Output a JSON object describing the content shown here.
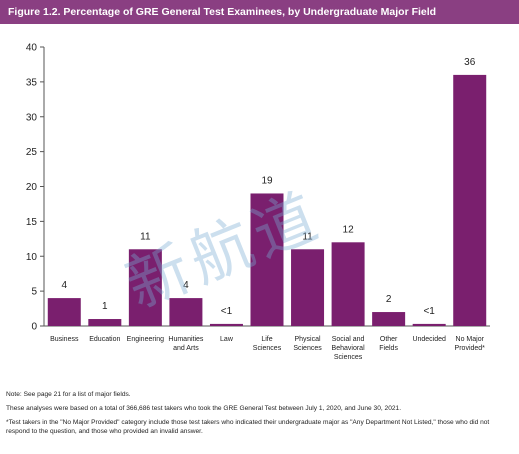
{
  "figure_title": "Figure 1.2. Percentage of GRE General Test Examinees, by Undergraduate Major Field",
  "watermark_text": "新航道",
  "chart_data": {
    "type": "bar",
    "categories": [
      [
        "Business"
      ],
      [
        "Education"
      ],
      [
        "Engineering"
      ],
      [
        "Humanities",
        "and Arts"
      ],
      [
        "Law"
      ],
      [
        "Life",
        "Sciences"
      ],
      [
        "Physical",
        "Sciences"
      ],
      [
        "Social and",
        "Behavioral",
        "Sciences"
      ],
      [
        "Other",
        "Fields"
      ],
      [
        "Undecided"
      ],
      [
        "No Major",
        "Provided*"
      ]
    ],
    "values": [
      4,
      1,
      11,
      4,
      0.3,
      19,
      11,
      12,
      2,
      0.3,
      36
    ],
    "data_labels": [
      "4",
      "1",
      "11",
      "4",
      "<1",
      "19",
      "11",
      "12",
      "2",
      "<1",
      "36"
    ],
    "ylim": [
      0,
      40
    ],
    "yticks": [
      0,
      5,
      10,
      15,
      20,
      25,
      30,
      35,
      40
    ],
    "bar_color": "#7a1f6e",
    "grid": false
  },
  "notes": [
    "Note: See page 21 for a list of major fields.",
    "These analyses were based on a total of 366,686 test takers who took the GRE General Test between July 1, 2020, and June 30, 2021.",
    "*Test takers in the \"No Major Provided\" category include those test takers who indicated their undergraduate major as \"Any Department Not Listed,\" those who did not respond to the question, and those who provided an invalid answer."
  ]
}
